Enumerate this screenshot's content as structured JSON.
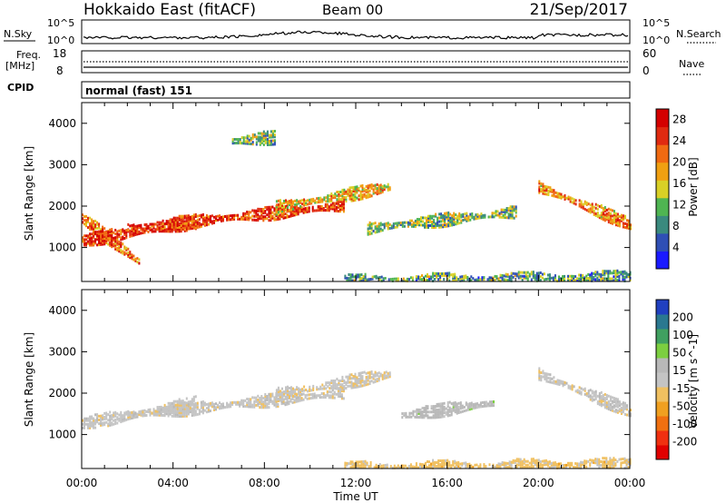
{
  "header": {
    "station": "Hokkaido East (fitACF)",
    "beam": "Beam 00",
    "date": "21/Sep/2017"
  },
  "noise_panel": {
    "left_label": "N.Sky",
    "right_label": "N.Search",
    "left_ticks": [
      "10^5",
      "10^0"
    ],
    "right_ticks": [
      "10^5",
      "10^0"
    ]
  },
  "freq_panel": {
    "left_label_1": "Freq.",
    "left_label_2": "[MHz]",
    "left_ticks": [
      "18",
      "8"
    ],
    "right_label": "Nave",
    "right_ticks": [
      "60",
      "0"
    ],
    "cpid_label": "CPID"
  },
  "cpid_panel": {
    "mode": "normal (fast) 151"
  },
  "colors": {
    "power_scale": [
      "#1a1aff",
      "#2f4fb5",
      "#3a8a7e",
      "#4fb552",
      "#d9d026",
      "#f0a012",
      "#f06a12",
      "#e02a10",
      "#d40000"
    ],
    "velocity_scale": [
      "#e00000",
      "#f03010",
      "#f07010",
      "#f0a020",
      "#f0c060",
      "#c4c4c4",
      "#b8b8b8",
      "#7ccf40",
      "#40a060",
      "#2a7890",
      "#2040c0"
    ]
  },
  "chart_data": [
    {
      "type": "heatmap",
      "panel": "power",
      "xlabel": "Time UT",
      "ylabel": "Slant Range [km]",
      "x_ticks": [
        "00:00",
        "04:00",
        "08:00",
        "12:00",
        "16:00",
        "20:00",
        "00:00"
      ],
      "xlim_hours": [
        0,
        24
      ],
      "y_ticks": [
        "1000",
        "2000",
        "3000",
        "4000"
      ],
      "ylim_km": [
        180,
        4500
      ],
      "colorbar": {
        "label": "Power [dB]",
        "ticks": [
          "4",
          "8",
          "12",
          "16",
          "20",
          "24",
          "28"
        ],
        "range": [
          0,
          30
        ]
      },
      "grid": false,
      "features": [
        {
          "t_start": 0.0,
          "t_end": 2.5,
          "range_start": 1750,
          "range_end": 700,
          "value": 22
        },
        {
          "t_start": 0.0,
          "t_end": 5.0,
          "range_start": 1200,
          "range_end": 1650,
          "value": 26
        },
        {
          "t_start": 2.0,
          "t_end": 11.5,
          "range_start": 1500,
          "range_end": 2050,
          "value": 25
        },
        {
          "t_start": 8.5,
          "t_end": 13.5,
          "range_start": 2000,
          "range_end": 2500,
          "value": 18
        },
        {
          "t_start": 12.5,
          "t_end": 19.0,
          "range_start": 1500,
          "range_end": 1900,
          "value": 12
        },
        {
          "t_start": 20.0,
          "t_end": 24.0,
          "range_start": 2500,
          "range_end": 1600,
          "value": 20
        },
        {
          "t_start": 6.5,
          "t_end": 8.5,
          "range_start": 3600,
          "range_end": 3700,
          "value": 12
        },
        {
          "t_start": 11.5,
          "t_end": 24.0,
          "range_start": 220,
          "range_end": 320,
          "value": 10
        }
      ]
    },
    {
      "type": "heatmap",
      "panel": "velocity",
      "xlabel": "Time UT",
      "ylabel": "Slant Range [km]",
      "x_ticks": [
        "00:00",
        "04:00",
        "08:00",
        "12:00",
        "16:00",
        "20:00",
        "00:00"
      ],
      "xlim_hours": [
        0,
        24
      ],
      "y_ticks": [
        "1000",
        "2000",
        "3000",
        "4000"
      ],
      "ylim_km": [
        180,
        4500
      ],
      "colorbar": {
        "label": "Velocity [m s^-1]",
        "ticks": [
          "200",
          "100",
          "50",
          "15",
          "-15",
          "-50",
          "-100",
          "-200"
        ],
        "range": [
          -250,
          250
        ]
      },
      "grid": false,
      "features": [
        {
          "t_start": 0.0,
          "t_end": 5.0,
          "range_start": 1300,
          "range_end": 1800,
          "value": 0
        },
        {
          "t_start": 2.0,
          "t_end": 11.5,
          "range_start": 1500,
          "range_end": 2050,
          "value": 0
        },
        {
          "t_start": 8.5,
          "t_end": 13.5,
          "range_start": 2000,
          "range_end": 2500,
          "value": -10
        },
        {
          "t_start": 14.0,
          "t_end": 18.0,
          "range_start": 1500,
          "range_end": 1800,
          "value": 40
        },
        {
          "t_start": 20.0,
          "t_end": 24.0,
          "range_start": 2500,
          "range_end": 1600,
          "value": 0
        },
        {
          "t_start": 11.5,
          "t_end": 24.0,
          "range_start": 220,
          "range_end": 320,
          "value": -40
        }
      ]
    }
  ]
}
